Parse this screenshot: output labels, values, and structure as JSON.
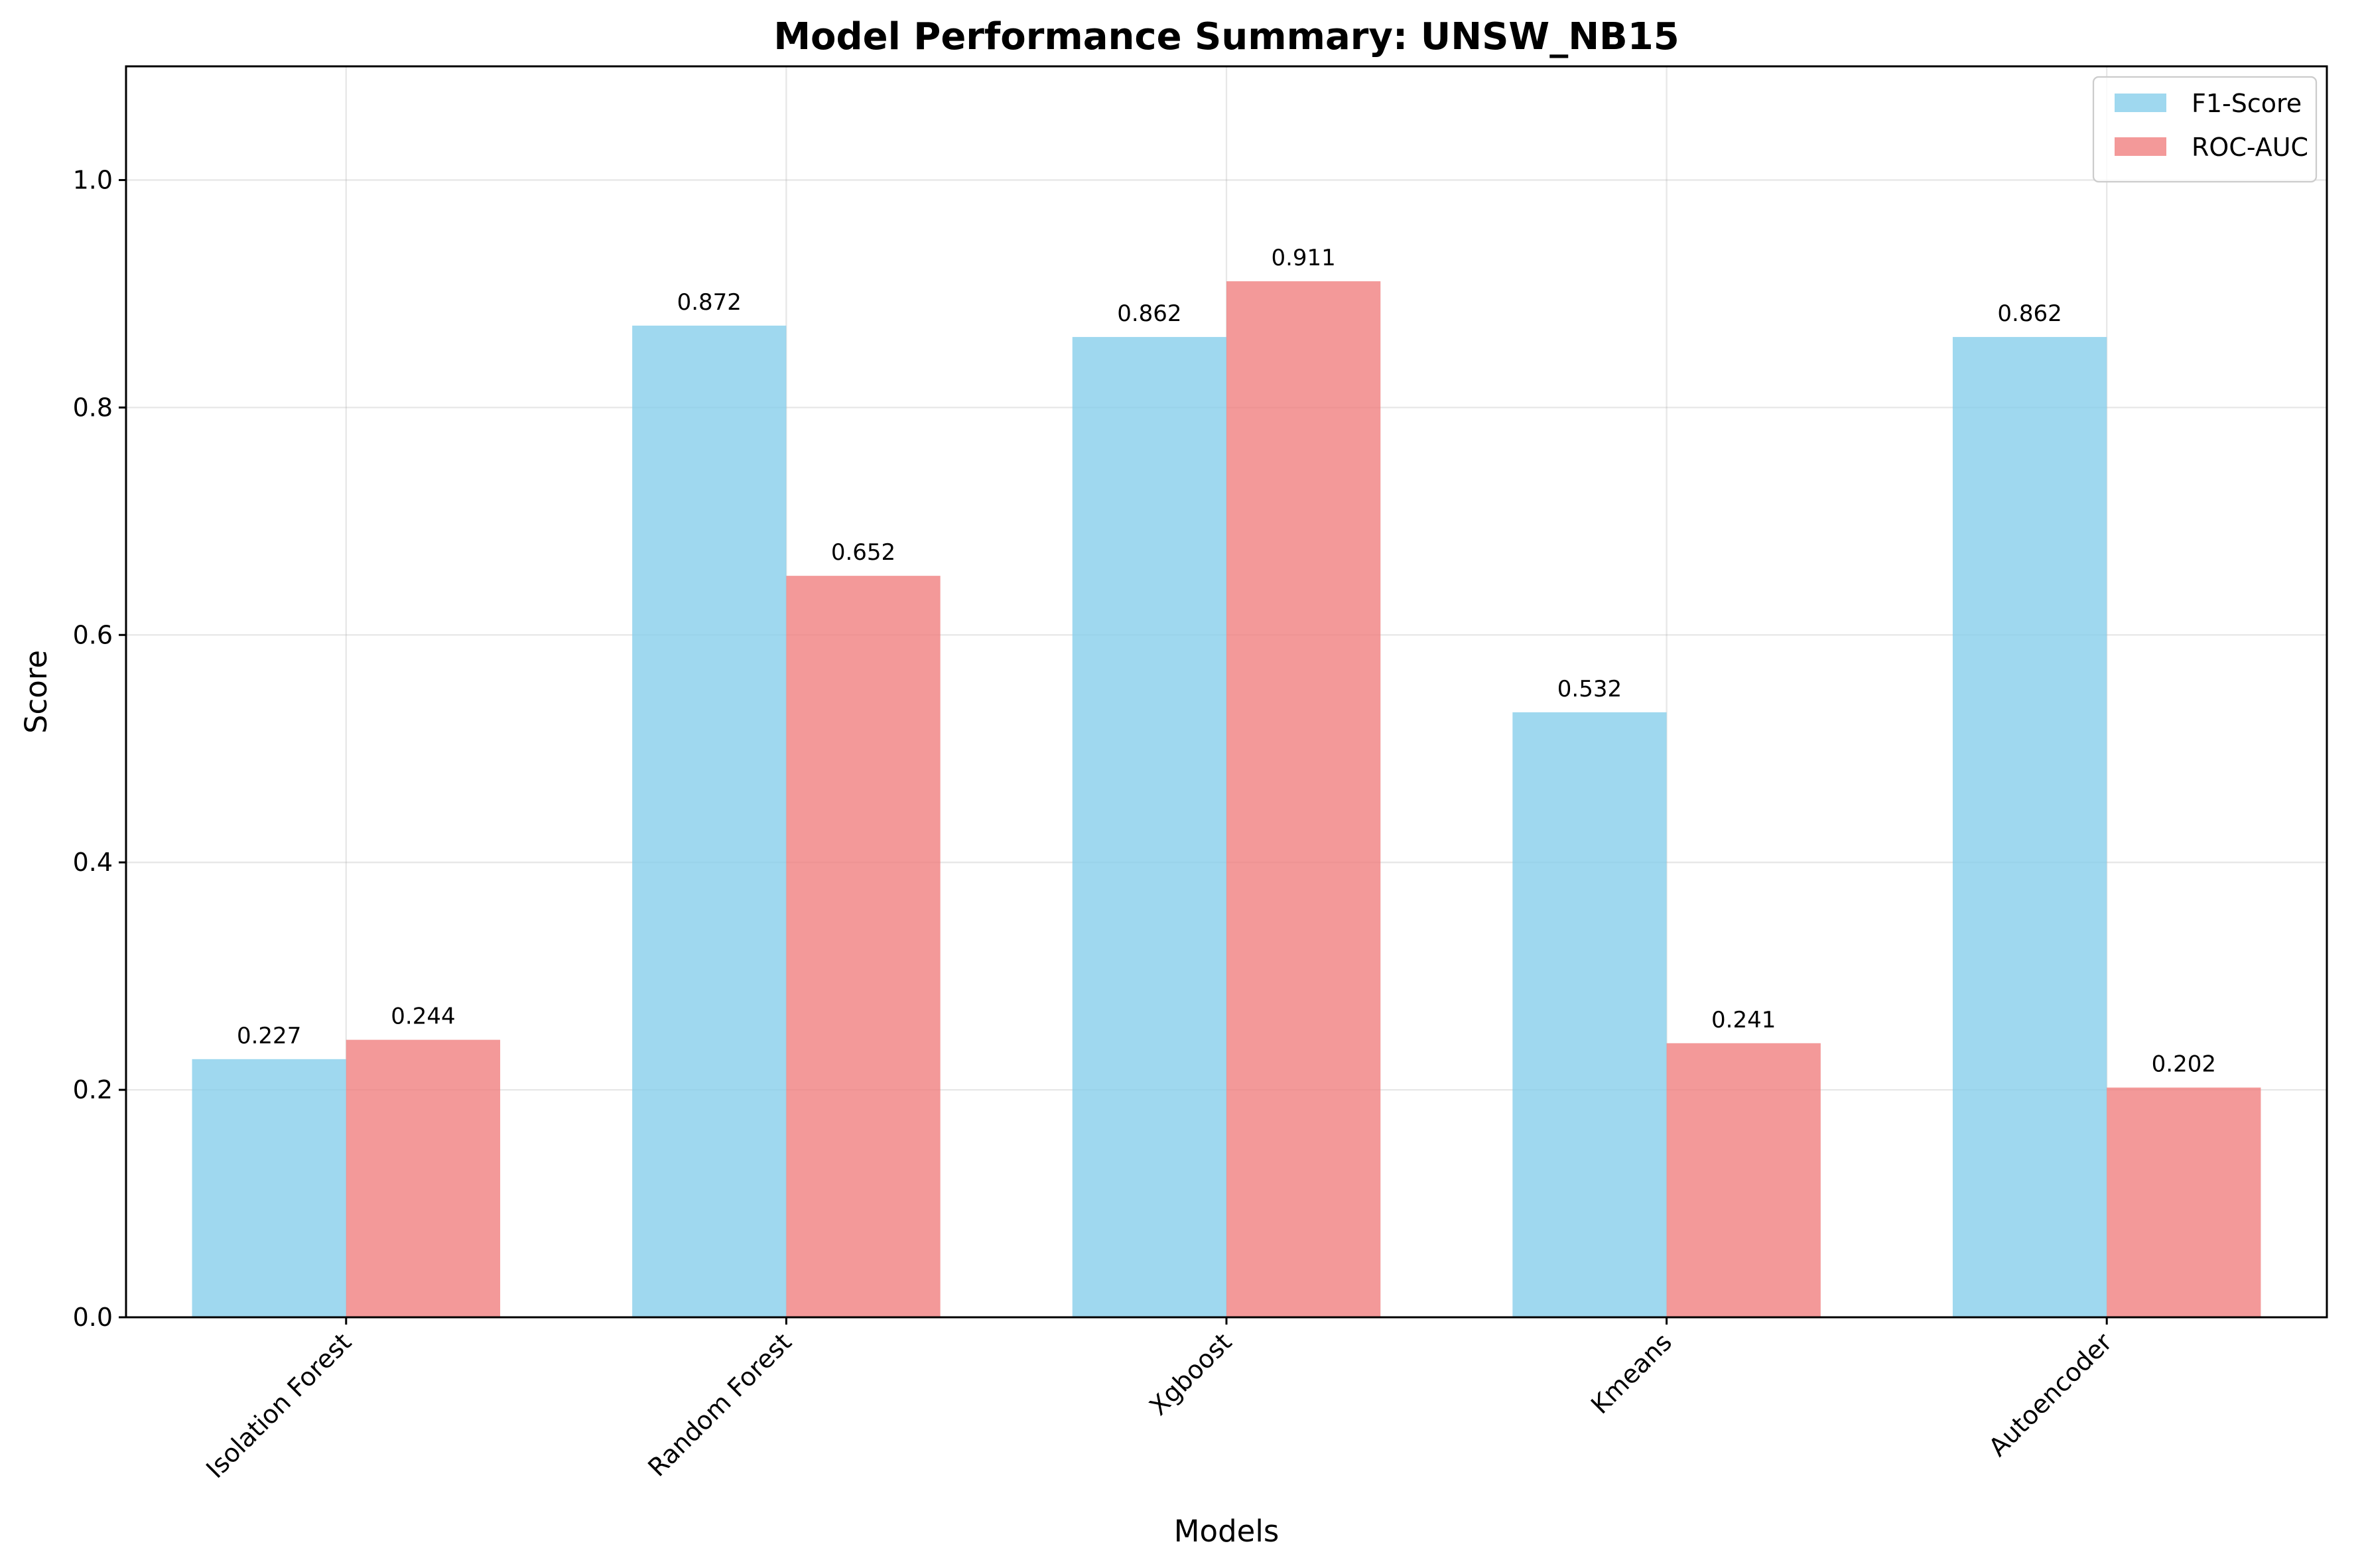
{
  "chart_data": {
    "type": "bar",
    "title": "Model Performance Summary: UNSW_NB15",
    "xlabel": "Models",
    "ylabel": "Score",
    "categories": [
      "Isolation Forest",
      "Random Forest",
      "Xgboost",
      "Kmeans",
      "Autoencoder"
    ],
    "series": [
      {
        "name": "F1-Score",
        "color": "#87ceeb",
        "values": [
          0.227,
          0.872,
          0.862,
          0.532,
          0.862
        ],
        "labels": [
          "0.227",
          "0.872",
          "0.862",
          "0.532",
          "0.862"
        ]
      },
      {
        "name": "ROC-AUC",
        "color": "#f08080",
        "values": [
          0.244,
          0.652,
          0.911,
          0.241,
          0.202
        ],
        "labels": [
          "0.244",
          "0.652",
          "0.911",
          "0.241",
          "0.202"
        ]
      }
    ],
    "ylim": [
      0,
      1.1
    ],
    "yticks": [
      "0.0",
      "0.2",
      "0.4",
      "0.6",
      "0.8",
      "1.0"
    ],
    "grid": true,
    "legend_position": "top-right"
  }
}
